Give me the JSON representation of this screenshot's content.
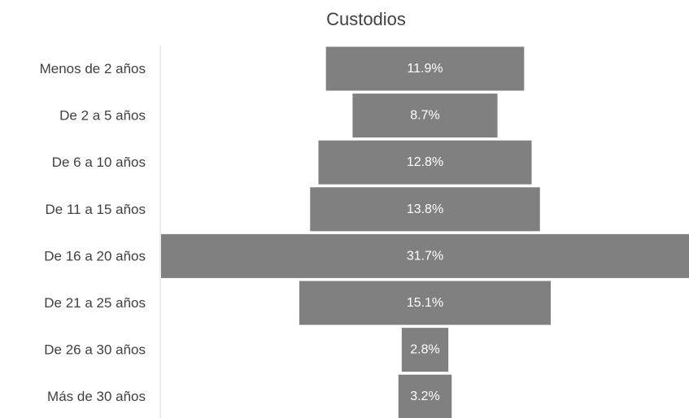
{
  "chart_data": {
    "type": "bar",
    "orientation": "horizontal-funnel",
    "title": "Custodios",
    "categories": [
      "Menos de 2 años",
      "De 2 a 5 años",
      "De 6 a 10 años",
      "De 11 a 15 años",
      "De 16 a 20 años",
      "De 21 a 25 años",
      "De 26 a 30 años",
      "Más de 30 años"
    ],
    "values": [
      11.9,
      8.7,
      12.8,
      13.8,
      31.7,
      15.1,
      2.8,
      3.2
    ],
    "value_labels": [
      "11.9%",
      "8.7%",
      "12.8%",
      "13.8%",
      "31.7%",
      "15.1%",
      "2.8%",
      "3.2%"
    ],
    "unit": "%",
    "bar_color": "#808080",
    "label_color": "#ffffff",
    "text_color": "#404040",
    "axis_color": "#d9d9d9",
    "grid": false,
    "legend": "none"
  }
}
